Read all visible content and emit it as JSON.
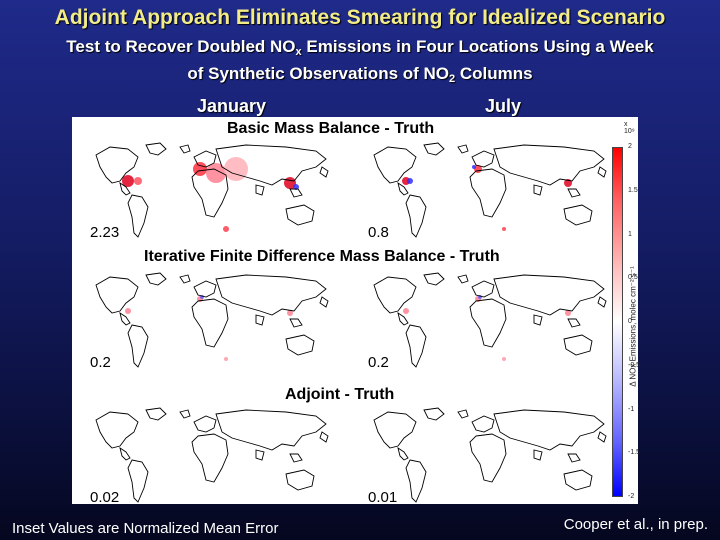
{
  "slide": {
    "title": "Adjoint Approach Eliminates Smearing for Idealized Scenario",
    "subtitle_part1": "Test to Recover Doubled NO",
    "subtitle_sub1": "x",
    "subtitle_part2": " Emissions in Four Locations Using a Week",
    "subtitle_part3": "of Synthetic Observations of NO",
    "subtitle_sub2": "2",
    "subtitle_part4": " Columns",
    "footer_left": "Inset Values are Normalized Mean Error",
    "footer_right": "Cooper et al., in prep."
  },
  "figure": {
    "columns": [
      "January",
      "July"
    ],
    "sections": [
      {
        "title": "Basic Mass Balance - Truth",
        "inset_values": [
          "2.23",
          "0.8"
        ]
      },
      {
        "title": "Iterative Finite Difference Mass Balance - Truth",
        "inset_values": [
          "0.2",
          "0.2"
        ]
      },
      {
        "title": "Adjoint - Truth",
        "inset_values": [
          "0.02",
          "0.01"
        ]
      }
    ],
    "colorbar": {
      "exponent": "x 10⁹",
      "ticks": [
        "2",
        "1.5",
        "1",
        "0.5",
        "0",
        "-0.5",
        "-1",
        "-1.5",
        "-2"
      ],
      "label": "Δ NOx Emissions, molec cm⁻² s⁻¹",
      "colors": {
        "max": "#ff0000",
        "mid": "#ffffff",
        "min": "#0000ff"
      }
    }
  }
}
